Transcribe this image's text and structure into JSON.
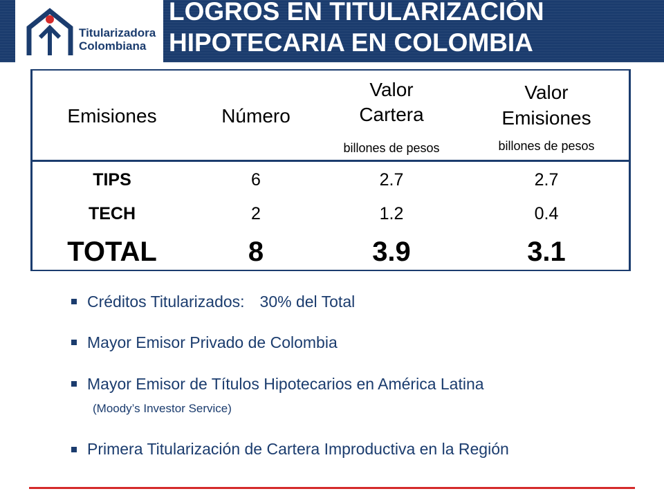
{
  "header": {
    "title_line1": "LOGROS EN TITULARIZACIÓN",
    "title_line2": "HIPOTECARIA EN COLOMBIA",
    "logo_line1": "Titularizadora",
    "logo_line2": "Colombiana",
    "logo_icon": "house-arrow-icon"
  },
  "table": {
    "headers": {
      "emisiones": "Emisiones",
      "numero": "Número",
      "valor_cartera_line1": "Valor",
      "valor_cartera_line2": "Cartera",
      "valor_cartera_unit": "billones de pesos",
      "valor_emisiones_line1": "Valor",
      "valor_emisiones_line2": "Emisiones",
      "valor_emisiones_unit": "billones de pesos"
    },
    "rows": [
      {
        "emision": "TIPS",
        "numero": "6",
        "valor_cartera": "2.7",
        "valor_emisiones": "2.7"
      },
      {
        "emision": "TECH",
        "numero": "2",
        "valor_cartera": "1.2",
        "valor_emisiones": "0.4"
      }
    ],
    "total": {
      "emision": "TOTAL",
      "numero": "8",
      "valor_cartera": "3.9",
      "valor_emisiones": "3.1"
    }
  },
  "bullets": [
    {
      "label": "Créditos Titularizados:",
      "value": "30% del Total"
    },
    {
      "text": "Mayor Emisor Privado de Colombia"
    },
    {
      "text": "Mayor Emisor de Títulos Hipotecarios en América Latina",
      "note": "(Moody’s Investor Service)"
    },
    {
      "text": "Primera Titularización de Cartera Improductiva en la Región"
    }
  ],
  "colors": {
    "brand_blue": "#1b3c6e",
    "accent_red": "#d52b2b"
  }
}
